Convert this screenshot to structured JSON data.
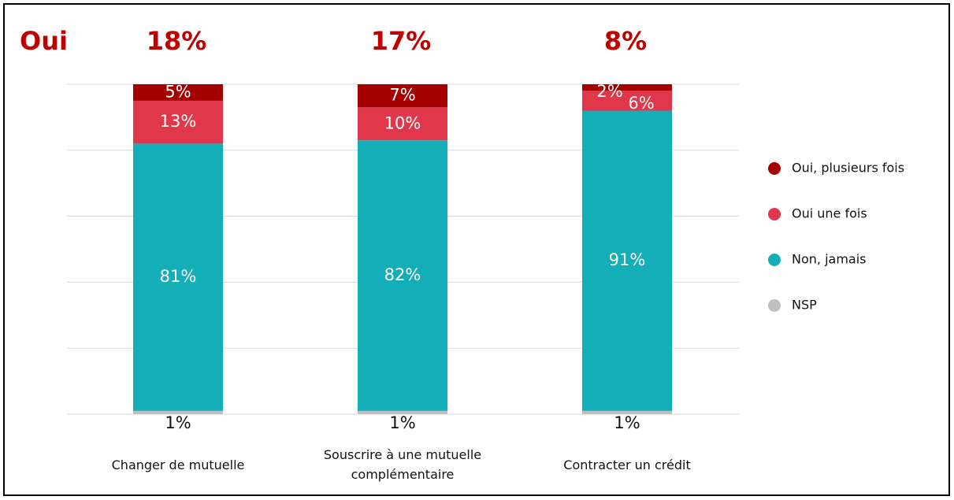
{
  "chart_data": {
    "type": "stacked_bar",
    "oui_label": "Oui",
    "oui_totals": [
      18,
      17,
      8
    ],
    "oui_totals_labels": [
      "18%",
      "17%",
      "8%"
    ],
    "categories": [
      "Changer de mutuelle",
      "Souscrire à une mutuelle complémentaire",
      "Contracter un crédit"
    ],
    "series": [
      {
        "name": "NSP",
        "color": "#bfbfbf",
        "values": [
          1,
          1,
          1
        ],
        "value_labels": [
          "1%",
          "1%",
          "1%"
        ]
      },
      {
        "name": "Non, jamais",
        "color": "#13aeb8",
        "values": [
          81,
          82,
          91
        ],
        "value_labels": [
          "81%",
          "82%",
          "91%"
        ]
      },
      {
        "name": "Oui une fois",
        "color": "#e0384a",
        "values": [
          13,
          10,
          6
        ],
        "value_labels": [
          "13%",
          "10%",
          "6%"
        ]
      },
      {
        "name": "Oui, plusieurs fois",
        "color": "#a50000",
        "values": [
          5,
          7,
          2
        ],
        "value_labels": [
          "5%",
          "7%",
          "2%"
        ]
      }
    ],
    "ylim": [
      0,
      100
    ],
    "yticks": [
      0,
      20,
      40,
      60,
      80,
      100
    ],
    "grid": true,
    "legend": "right"
  }
}
